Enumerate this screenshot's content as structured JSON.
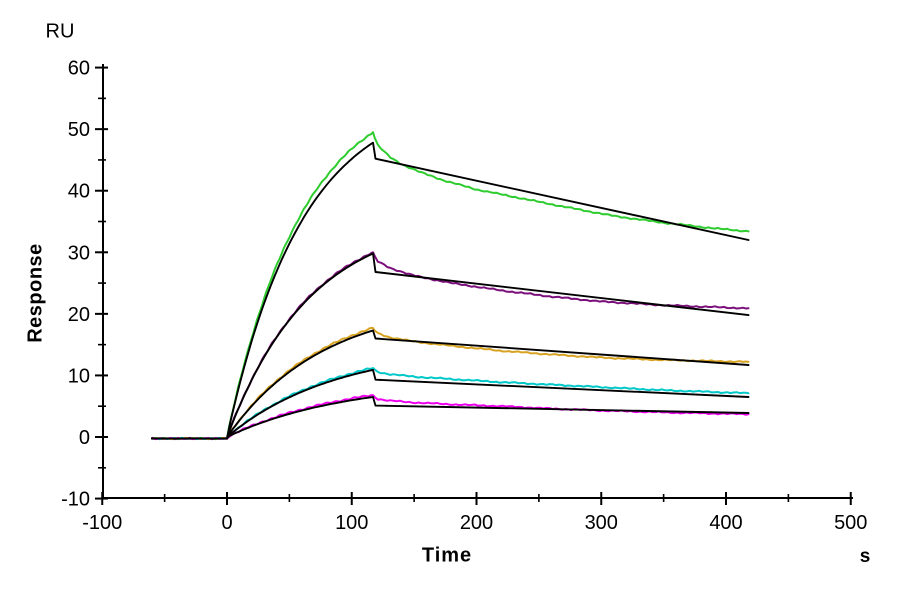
{
  "figure": {
    "background_color": "#ffffff",
    "kind": "SPR sensorgram with kinetic fit overlays"
  },
  "labels": {
    "y_unit": "RU",
    "y_axis_title": "Response",
    "x_axis_title": "Time",
    "x_unit": "s"
  },
  "chart_data": {
    "type": "line",
    "title": "",
    "ylabel": "Response",
    "y_unit_label": "RU",
    "xlabel": "Time",
    "x_unit_label": "s",
    "xlim": [
      -100,
      500
    ],
    "ylim": [
      -10,
      60
    ],
    "grid": false,
    "legend_position": "none",
    "x_major_ticks": [
      -100,
      0,
      100,
      200,
      300,
      400,
      500
    ],
    "x_minor_ticks": [
      -50,
      50,
      150,
      250,
      350,
      450
    ],
    "y_major_ticks": [
      -10,
      0,
      10,
      20,
      30,
      40,
      50,
      60
    ],
    "y_minor_ticks": [
      -5,
      5,
      15,
      25,
      35,
      45,
      55
    ],
    "axis_color": "#000000",
    "fit_color": "#000000",
    "baseline": {
      "start_t": -60,
      "value_ru": -0.25
    },
    "phases": {
      "association_start_t": 0,
      "association_end_t": 117,
      "dissociation_end_t": 418
    },
    "series": [
      {
        "id": "green",
        "color": "#2ECC2E",
        "peak_ru": 49.5,
        "kobs": 0.0165,
        "dissociation_points": [
          [
            120,
            47.6
          ],
          [
            125,
            46.5
          ],
          [
            131,
            45.4
          ],
          [
            140,
            44.3
          ],
          [
            155,
            43.0
          ],
          [
            175,
            41.6
          ],
          [
            200,
            40.2
          ],
          [
            235,
            38.8
          ],
          [
            270,
            37.4
          ],
          [
            310,
            35.9
          ],
          [
            350,
            34.8
          ],
          [
            390,
            33.9
          ],
          [
            418,
            33.4
          ]
        ]
      },
      {
        "id": "purple",
        "color": "#7B0F7B",
        "peak_ru": 30.0,
        "kobs": 0.015,
        "dissociation_points": [
          [
            120,
            28.6
          ],
          [
            130,
            27.5
          ],
          [
            150,
            26.2
          ],
          [
            180,
            25.0
          ],
          [
            220,
            23.8
          ],
          [
            260,
            22.8
          ],
          [
            300,
            22.0
          ],
          [
            350,
            21.4
          ],
          [
            418,
            20.9
          ]
        ]
      },
      {
        "id": "gold",
        "color": "#D8A323",
        "peak_ru": 17.7,
        "kobs": 0.013,
        "dissociation_points": [
          [
            120,
            16.9
          ],
          [
            130,
            16.2
          ],
          [
            150,
            15.5
          ],
          [
            180,
            14.8
          ],
          [
            220,
            14.0
          ],
          [
            260,
            13.4
          ],
          [
            300,
            12.9
          ],
          [
            350,
            12.5
          ],
          [
            418,
            12.2
          ]
        ]
      },
      {
        "id": "cyan",
        "color": "#00C8C8",
        "peak_ru": 11.2,
        "kobs": 0.0115,
        "dissociation_points": [
          [
            120,
            10.6
          ],
          [
            130,
            10.2
          ],
          [
            150,
            9.8
          ],
          [
            180,
            9.4
          ],
          [
            220,
            8.9
          ],
          [
            260,
            8.5
          ],
          [
            300,
            8.1
          ],
          [
            350,
            7.6
          ],
          [
            418,
            7.1
          ]
        ]
      },
      {
        "id": "magenta",
        "color": "#EE00EE",
        "peak_ru": 6.8,
        "kobs": 0.0105,
        "dissociation_points": [
          [
            120,
            6.2
          ],
          [
            130,
            5.9
          ],
          [
            150,
            5.6
          ],
          [
            180,
            5.3
          ],
          [
            220,
            5.0
          ],
          [
            260,
            4.6
          ],
          [
            300,
            4.3
          ],
          [
            350,
            4.0
          ],
          [
            418,
            3.7
          ]
        ]
      }
    ],
    "fits": [
      {
        "for": "green",
        "color": "#000000",
        "peak_ru": 47.8,
        "post_drop_ru": 45.2,
        "end_ru": 32.0,
        "kobs": 0.0165
      },
      {
        "for": "purple",
        "color": "#000000",
        "peak_ru": 29.8,
        "post_drop_ru": 26.8,
        "end_ru": 19.8,
        "kobs": 0.015
      },
      {
        "for": "gold",
        "color": "#000000",
        "peak_ru": 17.3,
        "post_drop_ru": 16.0,
        "end_ru": 11.7,
        "kobs": 0.013
      },
      {
        "for": "cyan",
        "color": "#000000",
        "peak_ru": 10.9,
        "post_drop_ru": 9.3,
        "end_ru": 6.5,
        "kobs": 0.0115
      },
      {
        "for": "magenta",
        "color": "#000000",
        "peak_ru": 6.5,
        "post_drop_ru": 5.1,
        "end_ru": 3.9,
        "kobs": 0.0105
      }
    ]
  }
}
